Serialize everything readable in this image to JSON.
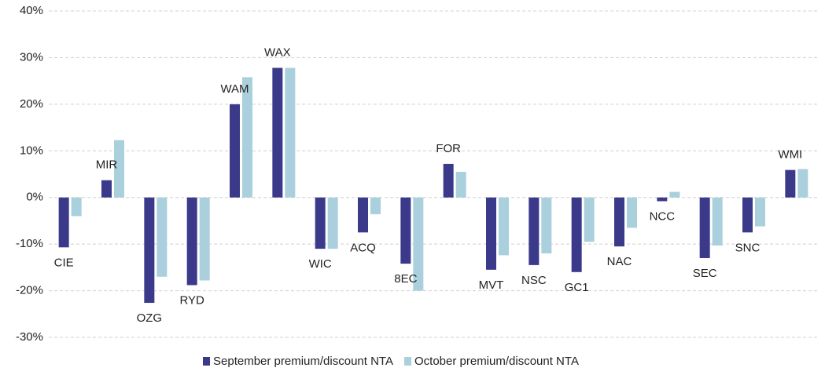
{
  "chart_data": {
    "type": "bar",
    "categories": [
      "CIE",
      "MIR",
      "OZG",
      "RYD",
      "WAM",
      "WAX",
      "WIC",
      "ACQ",
      "8EC",
      "FOR",
      "MVT",
      "NSC",
      "GC1",
      "NAC",
      "NCC",
      "SEC",
      "SNC",
      "WMI"
    ],
    "series": [
      {
        "name": "September premium/discount NTA",
        "color": "#3b3a8a",
        "values": [
          -10.7,
          3.7,
          -22.6,
          -18.8,
          20,
          27.8,
          -11,
          -7.5,
          -14.2,
          7.2,
          -15.5,
          -14.5,
          -16,
          -10.5,
          -0.8,
          -13,
          -7.5,
          5.9
        ]
      },
      {
        "name": "October premium/discount NTA",
        "color": "#a9d0dc",
        "values": [
          -4,
          12.3,
          -17,
          -17.8,
          25.8,
          27.8,
          -11,
          -3.6,
          -20,
          5.5,
          -12.4,
          -12,
          -9.5,
          -6.5,
          1.2,
          -10.3,
          -6.2,
          6.1
        ]
      }
    ],
    "ylim": [
      -30,
      40
    ],
    "yticks": [
      {
        "value": -30,
        "label": "-30%"
      },
      {
        "value": -20,
        "label": "-20%"
      },
      {
        "value": -10,
        "label": "-10%"
      },
      {
        "value": 0,
        "label": "0%"
      },
      {
        "value": 10,
        "label": "10%"
      },
      {
        "value": 20,
        "label": "20%"
      },
      {
        "value": 30,
        "label": "30%"
      },
      {
        "value": 40,
        "label": "40%"
      }
    ],
    "grid": true,
    "legend": "bottom"
  }
}
